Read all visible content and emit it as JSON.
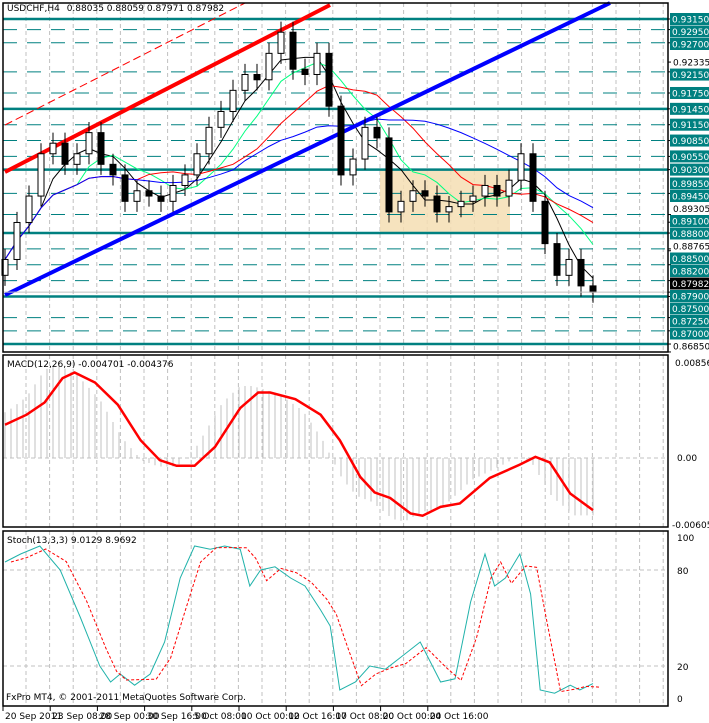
{
  "header": {
    "symbol": "USDCHF,H4",
    "ohlc": "0.88035 0.88059 0.87971 0.87982"
  },
  "footer": {
    "copyright": "FxPro MT4, © 2001-2011 MetaQuotes Software Corp."
  },
  "colors": {
    "level": "#008080",
    "bull": "#000000",
    "trend_red": "#ff0000",
    "trend_blue": "#0000ff",
    "box": "#f5deb3",
    "macd_signal": "#ff0000",
    "macd_hist": "#c0c0c0",
    "stoch_k": "#20b2aa",
    "stoch_d": "#ff0000"
  },
  "chart_data": [
    {
      "type": "candlestick",
      "title": "USDCHF,H4",
      "ylim": [
        0.8685,
        0.9325
      ],
      "time_labels": [
        "20 Sep 2011",
        "23 Sep 08:00",
        "28 Sep 00:00",
        "30 Sep 16:00",
        "5 Oct 08:00",
        "10 Oct 00:00",
        "12 Oct 16:00",
        "17 Oct 08:00",
        "20 Oct 00:00",
        "24 Oct 16:00"
      ],
      "close": [
        0.886,
        0.893,
        0.898,
        0.906,
        0.908,
        0.904,
        0.906,
        0.91,
        0.904,
        0.902,
        0.897,
        0.899,
        0.898,
        0.897,
        0.9,
        0.902,
        0.906,
        0.911,
        0.914,
        0.918,
        0.921,
        0.92,
        0.925,
        0.929,
        0.922,
        0.921,
        0.925,
        0.915,
        0.902,
        0.905,
        0.911,
        0.909,
        0.895,
        0.897,
        0.899,
        0.898,
        0.895,
        0.896,
        0.897,
        0.898,
        0.9,
        0.898,
        0.901,
        0.906,
        0.897,
        0.889,
        0.883,
        0.886,
        0.881,
        0.87982
      ],
      "levels_solid": [
        "0.93150",
        "0.91450",
        "0.90300",
        "0.89100",
        "0.87900",
        "0.87000"
      ],
      "levels_dashed": [
        "0.92950",
        "0.92700",
        "0.92150",
        "0.91750",
        "0.91150",
        "0.90850",
        "0.90550",
        "0.89850",
        "0.89450",
        "0.88800",
        "0.88500",
        "0.88200",
        "0.87500",
        "0.87250"
      ],
      "scale_labels": [
        "0.92335",
        "0.89305",
        "0.88765",
        "0.86850"
      ],
      "current_price": "0.87982"
    },
    {
      "type": "line",
      "title": "MACD(12,26,9) -0.004701 -0.004376",
      "ylim": [
        -0.00605,
        0.00856
      ],
      "tick_labels": [
        "0.00856",
        "0.00",
        "-0.00605"
      ],
      "signal": [
        [
          0,
          0.003
        ],
        [
          1.8,
          0.0039
        ],
        [
          3.3,
          0.005
        ],
        [
          4.8,
          0.0072
        ],
        [
          5.8,
          0.0077
        ],
        [
          7.5,
          0.0068
        ],
        [
          9.4,
          0.0048
        ],
        [
          11.3,
          0.0016
        ],
        [
          12.9,
          -0.0002
        ],
        [
          14.3,
          -0.0007
        ],
        [
          15.8,
          -0.0007
        ],
        [
          17.5,
          0.001
        ],
        [
          19.6,
          0.0045
        ],
        [
          21.1,
          0.0059
        ],
        [
          22.1,
          0.0059
        ],
        [
          24.2,
          0.0053
        ],
        [
          26.3,
          0.0039
        ],
        [
          27.9,
          0.0016
        ],
        [
          29.6,
          -0.0017
        ],
        [
          30.8,
          -0.0031
        ],
        [
          32.1,
          -0.0036
        ],
        [
          33.8,
          -0.005
        ],
        [
          34.8,
          -0.0052
        ],
        [
          36.3,
          -0.0044
        ],
        [
          37.9,
          -0.0041
        ],
        [
          40.4,
          -0.0018
        ],
        [
          42.9,
          -0.0006
        ],
        [
          44.2,
          0.0001
        ],
        [
          45.4,
          -0.0004
        ],
        [
          47.1,
          -0.0032
        ],
        [
          49,
          -0.0047
        ]
      ]
    },
    {
      "type": "line",
      "title": "Stoch(13,3,3) 9.0129 8.9692",
      "ylim": [
        0,
        100
      ],
      "tick_labels": [
        "100",
        "80",
        "20",
        "0"
      ],
      "k": [
        [
          0,
          85
        ],
        [
          1.3,
          90
        ],
        [
          2.9,
          95
        ],
        [
          4.6,
          80
        ],
        [
          6.3,
          50
        ],
        [
          7.9,
          20
        ],
        [
          8.8,
          10
        ],
        [
          9.6,
          15
        ],
        [
          10.8,
          8
        ],
        [
          12.1,
          15
        ],
        [
          13.3,
          35
        ],
        [
          14.6,
          75
        ],
        [
          15.8,
          95
        ],
        [
          17.1,
          93
        ],
        [
          18.3,
          95
        ],
        [
          19.6,
          93
        ],
        [
          20.4,
          70
        ],
        [
          21.3,
          80
        ],
        [
          22.5,
          82
        ],
        [
          23.8,
          75
        ],
        [
          25,
          70
        ],
        [
          26.3,
          55
        ],
        [
          27.1,
          45
        ],
        [
          27.9,
          5
        ],
        [
          29.2,
          10
        ],
        [
          30.4,
          20
        ],
        [
          31.7,
          18
        ],
        [
          32.9,
          25
        ],
        [
          34.6,
          35
        ],
        [
          36.3,
          10
        ],
        [
          37.5,
          12
        ],
        [
          38.8,
          60
        ],
        [
          40,
          90
        ],
        [
          40.8,
          70
        ],
        [
          41.7,
          75
        ],
        [
          42.9,
          90
        ],
        [
          43.8,
          65
        ],
        [
          44.6,
          5
        ],
        [
          45.8,
          3
        ],
        [
          47.1,
          8
        ],
        [
          47.9,
          5
        ],
        [
          49,
          9
        ]
      ]
    }
  ]
}
